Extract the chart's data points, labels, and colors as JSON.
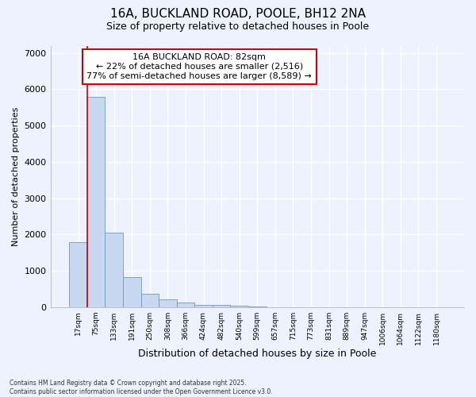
{
  "title_line1": "16A, BUCKLAND ROAD, POOLE, BH12 2NA",
  "title_line2": "Size of property relative to detached houses in Poole",
  "xlabel": "Distribution of detached houses by size in Poole",
  "ylabel": "Number of detached properties",
  "bar_categories": [
    "17sqm",
    "75sqm",
    "133sqm",
    "191sqm",
    "250sqm",
    "308sqm",
    "366sqm",
    "424sqm",
    "482sqm",
    "540sqm",
    "599sqm",
    "657sqm",
    "715sqm",
    "773sqm",
    "831sqm",
    "889sqm",
    "947sqm",
    "1006sqm",
    "1064sqm",
    "1122sqm",
    "1180sqm"
  ],
  "bar_values": [
    1800,
    5800,
    2050,
    820,
    370,
    220,
    120,
    75,
    55,
    35,
    20,
    10,
    5,
    2,
    1,
    1,
    1,
    0,
    0,
    0,
    0
  ],
  "bar_color": "#c8d8f0",
  "bar_edge_color": "#7098c0",
  "ylim": [
    0,
    7200
  ],
  "yticks": [
    0,
    1000,
    2000,
    3000,
    4000,
    5000,
    6000,
    7000
  ],
  "property_line_x": 0.5,
  "property_line_color": "#cc0000",
  "annotation_title": "16A BUCKLAND ROAD: 82sqm",
  "annotation_line1": "← 22% of detached houses are smaller (2,516)",
  "annotation_line2": "77% of semi-detached houses are larger (8,589) →",
  "annotation_box_color": "#cc0000",
  "background_color": "#eef2ff",
  "grid_color": "#c8d8f0",
  "footer_line1": "Contains HM Land Registry data © Crown copyright and database right 2025.",
  "footer_line2": "Contains public sector information licensed under the Open Government Licence v3.0."
}
